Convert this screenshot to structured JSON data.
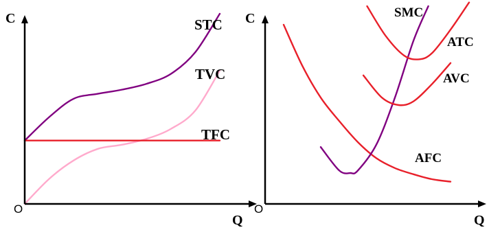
{
  "chart_data": [
    {
      "type": "line",
      "title": "",
      "ylabel": "C",
      "xlabel": "Q",
      "origin_label": "O",
      "grid": false,
      "colors": {
        "STC": "#800080",
        "TVC": "#ffaacc",
        "TFC": "#e8202a",
        "axis": "#000000"
      },
      "series": [
        {
          "name": "STC",
          "points": [
            [
              0,
              3.8
            ],
            [
              1,
              5.2
            ],
            [
              2,
              6.3
            ],
            [
              3,
              6.6
            ],
            [
              4,
              6.85
            ],
            [
              5,
              7.2
            ],
            [
              6,
              7.8
            ],
            [
              7,
              9.1
            ],
            [
              8,
              11.4
            ]
          ]
        },
        {
          "name": "TVC",
          "points": [
            [
              0,
              0
            ],
            [
              1,
              1.5
            ],
            [
              2,
              2.6
            ],
            [
              3,
              3.3
            ],
            [
              4,
              3.55
            ],
            [
              5,
              3.9
            ],
            [
              6,
              4.5
            ],
            [
              7,
              5.6
            ],
            [
              8,
              8.0
            ]
          ]
        },
        {
          "name": "TFC",
          "points": [
            [
              0,
              3.8
            ],
            [
              8,
              3.8
            ]
          ]
        }
      ]
    },
    {
      "type": "line",
      "title": "",
      "ylabel": "C",
      "xlabel": "Q",
      "origin_label": "O",
      "grid": false,
      "colors": {
        "SMC": "#800080",
        "ATC": "#e8202a",
        "AVC": "#e8202a",
        "AFC": "#e8202a",
        "axis": "#000000"
      },
      "series": [
        {
          "name": "AFC",
          "points": [
            [
              1,
              14.5
            ],
            [
              2,
              11.2
            ],
            [
              3,
              8.6
            ],
            [
              4,
              6.7
            ],
            [
              5,
              5.0
            ],
            [
              6,
              3.7
            ],
            [
              7,
              2.9
            ],
            [
              8,
              2.4
            ],
            [
              9,
              2.0
            ],
            [
              10,
              1.8
            ]
          ]
        },
        {
          "name": "SMC",
          "points": [
            [
              3,
              4.6
            ],
            [
              4,
              2.7
            ],
            [
              4.6,
              2.5
            ],
            [
              5,
              2.7
            ],
            [
              6,
              4.8
            ],
            [
              7,
              8.6
            ],
            [
              8,
              13.2
            ],
            [
              8.8,
              16.0
            ]
          ]
        },
        {
          "name": "ATC",
          "points": [
            [
              5.5,
              16.0
            ],
            [
              6.5,
              13.6
            ],
            [
              7.5,
              12.0
            ],
            [
              8.3,
              11.7
            ],
            [
              9,
              12.2
            ],
            [
              10,
              14.1
            ],
            [
              11,
              16.3
            ]
          ]
        },
        {
          "name": "AVC",
          "points": [
            [
              5.3,
              10.4
            ],
            [
              6.3,
              8.6
            ],
            [
              7.2,
              8.0
            ],
            [
              8,
              8.3
            ],
            [
              9,
              9.7
            ],
            [
              10,
              11.4
            ]
          ]
        }
      ]
    }
  ]
}
